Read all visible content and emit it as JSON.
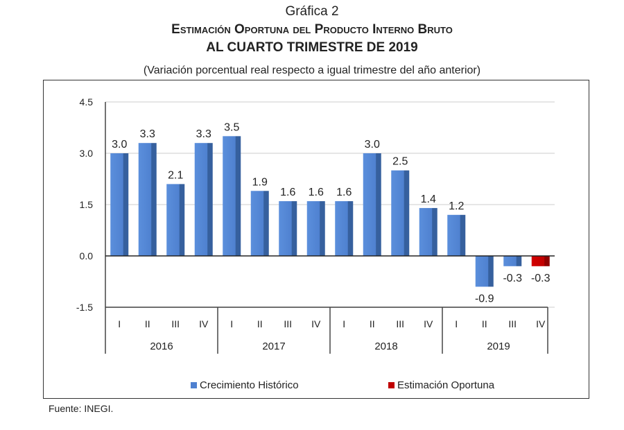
{
  "header": {
    "label": "Gráfica 2",
    "title_line1": "Estimación Oportuna del Producto Interno Bruto",
    "title_line2": "AL CUARTO TRIMESTRE DE 2019",
    "subtitle": "(Variación porcentual real respecto a igual trimestre del año anterior)"
  },
  "source": "Fuente: INEGI.",
  "chart_data": {
    "type": "bar",
    "ylim": [
      -1.5,
      4.5
    ],
    "yticks": [
      "4.5",
      "3.0",
      "1.5",
      "0.0",
      "-1.5"
    ],
    "grid": true,
    "legend_placement": "bottom",
    "quarters": [
      "I",
      "II",
      "III",
      "IV",
      "I",
      "II",
      "III",
      "IV",
      "I",
      "II",
      "III",
      "IV",
      "I",
      "II",
      "III",
      "IV"
    ],
    "years": [
      "2016",
      "2017",
      "2018",
      "2019"
    ],
    "values": [
      3.0,
      3.3,
      2.1,
      3.3,
      3.5,
      1.9,
      1.6,
      1.6,
      1.6,
      3.0,
      2.5,
      1.4,
      1.2,
      -0.9,
      -0.3,
      -0.3
    ],
    "value_labels": [
      "3.0",
      "3.3",
      "2.1",
      "3.3",
      "3.5",
      "1.9",
      "1.6",
      "1.6",
      "1.6",
      "3.0",
      "2.5",
      "1.4",
      "1.2",
      "-0.9",
      "-0.3",
      "-0.3"
    ],
    "series_of_bar": [
      0,
      0,
      0,
      0,
      0,
      0,
      0,
      0,
      0,
      0,
      0,
      0,
      0,
      0,
      0,
      1
    ],
    "series": [
      {
        "name": "Crecimiento  Histórico",
        "color": "#4f81d0"
      },
      {
        "name": "Estimación Oportuna",
        "color": "#c00000"
      }
    ]
  }
}
